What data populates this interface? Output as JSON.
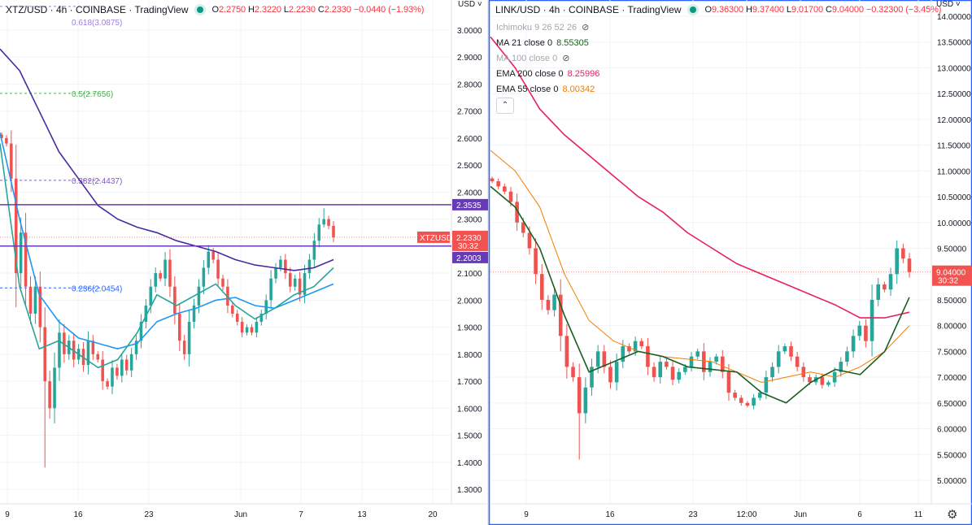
{
  "left": {
    "symbol": "XTZ/USD · 4h · COINBASE · TradingView",
    "ohlc": {
      "o_label": "O",
      "o": "2.2750",
      "h_label": "H",
      "h": "2.3220",
      "l_label": "L",
      "l": "2.2230",
      "c_label": "C",
      "c": "2.2330",
      "change": "−0.0440 (−1.93%)"
    },
    "currency": "USD ˅",
    "price_tag": {
      "symbol": "XTZUSD",
      "price": "2.2330",
      "countdown": "30:32",
      "color": "#f05350"
    },
    "level_tags": [
      "2.3535",
      "2.2003"
    ],
    "fib_labels": [
      "0.618(3.0875)",
      "0.5(2.7656)",
      "0.382(2.4437)",
      "0.236(2.0454)"
    ]
  },
  "right": {
    "symbol": "LINK/USD · 4h · COINBASE · TradingView",
    "ohlc": {
      "o_label": "O",
      "o": "9.36300",
      "h_label": "H",
      "h": "9.37400",
      "l_label": "L",
      "l": "9.01700",
      "c_label": "C",
      "c": "9.04000",
      "change": "−0.32300 (−3.45%)"
    },
    "currency": "USD ˅",
    "indicators": [
      {
        "label": "Ichimoku 9 26 52 26",
        "value": "",
        "hidden": true,
        "color": "#a3a6af"
      },
      {
        "label": "MA 21 close 0",
        "value": "8.55305",
        "hidden": false,
        "color": "#1b5e20"
      },
      {
        "label": "MA 100 close 0",
        "value": "",
        "hidden": true,
        "color": "#a3a6af"
      },
      {
        "label": "EMA 200 close 0",
        "value": "8.25996",
        "hidden": false,
        "color": "#e91e63"
      },
      {
        "label": "EMA 55 close 0",
        "value": "8.00342",
        "hidden": false,
        "color": "#f57c00"
      }
    ],
    "collapse_icon": "chevron-up-icon",
    "price_tag": {
      "price": "9.04000",
      "countdown": "30:32",
      "color": "#f05350"
    },
    "settings_icon": "gear-icon"
  },
  "colors": {
    "up": "#26a69a",
    "down": "#ef5350",
    "panel_border": "#2962ff",
    "level": "#673ab7"
  },
  "chart_data": [
    {
      "type": "candlestick",
      "title": "XTZ/USD · 4h · COINBASE",
      "ylim": [
        1.22,
        3.11
      ],
      "y_ticks": [
        "3.0000",
        "2.9000",
        "2.8000",
        "2.7000",
        "2.6000",
        "2.5000",
        "2.4000",
        "2.3000",
        "2.2000",
        "2.1000",
        "2.0000",
        "1.9000",
        "1.8000",
        "1.7000",
        "1.6000",
        "1.5000",
        "1.4000",
        "1.3000"
      ],
      "x_ticks": [
        "9",
        "16",
        "23",
        "Jun",
        "7",
        "13",
        "20"
      ],
      "closes": [
        2.6,
        2.58,
        2.45,
        2.1,
        2.25,
        2.05,
        1.95,
        2.05,
        1.9,
        1.7,
        1.6,
        1.75,
        1.88,
        1.8,
        1.85,
        1.78,
        1.82,
        1.76,
        1.85,
        1.8,
        1.78,
        1.7,
        1.68,
        1.75,
        1.72,
        1.78,
        1.74,
        1.8,
        1.85,
        1.92,
        1.98,
        2.05,
        2.1,
        2.08,
        2.15,
        2.05,
        1.95,
        1.85,
        1.8,
        1.92,
        1.98,
        2.05,
        2.12,
        2.18,
        2.15,
        2.08,
        2.05,
        1.98,
        1.95,
        1.92,
        1.88,
        1.9,
        1.88,
        1.92,
        1.95,
        2.0,
        2.08,
        2.12,
        2.15,
        2.1,
        2.05,
        2.08,
        2.02,
        2.1,
        2.15,
        2.22,
        2.28,
        2.3,
        2.275,
        2.233
      ],
      "extreme_low": {
        "index": 9,
        "value": 1.38
      },
      "extreme_high": {
        "index": 67,
        "value": 2.34
      },
      "lines": [
        {
          "color": "#4a2aa0",
          "values": [
            2.93,
            2.85,
            2.7,
            2.55,
            2.45,
            2.35,
            2.3,
            2.27,
            2.25,
            2.22,
            2.2,
            2.18,
            2.15,
            2.13,
            2.12,
            2.11,
            2.12,
            2.15
          ]
        },
        {
          "color": "#2196f3",
          "values": [
            2.62,
            2.3,
            2.02,
            1.92,
            1.86,
            1.84,
            1.82,
            1.84,
            1.92,
            1.95,
            1.97,
            2.0,
            2.01,
            1.98,
            1.97,
            2.0,
            2.03,
            2.06
          ]
        },
        {
          "color": "#26a69a",
          "values": [
            2.58,
            2.05,
            1.82,
            1.85,
            1.8,
            1.75,
            1.78,
            1.88,
            2.02,
            1.98,
            2.02,
            2.06,
            1.98,
            1.93,
            1.97,
            2.02,
            2.05,
            2.12
          ]
        }
      ],
      "levels": [
        2.3535,
        2.2003
      ],
      "fib_levels": [
        3.0875,
        2.7656,
        2.4437,
        2.0454
      ],
      "fib_colors": [
        "#9c7fe0",
        "#4caf50",
        "#7e57c2",
        "#2962ff"
      ],
      "last_price": 2.233
    },
    {
      "type": "candlestick",
      "title": "LINK/USD · 4h · COINBASE",
      "ylim": [
        4.5,
        14.3
      ],
      "y_ticks": [
        "14.00000",
        "13.50000",
        "13.00000",
        "12.50000",
        "12.00000",
        "11.50000",
        "11.00000",
        "10.50000",
        "10.00000",
        "9.50000",
        "9.00000",
        "8.50000",
        "8.00000",
        "7.50000",
        "7.00000",
        "6.50000",
        "6.00000",
        "5.50000",
        "5.00000"
      ],
      "x_ticks": [
        "9",
        "16",
        "23",
        "12:00",
        "Jun",
        "6",
        "11"
      ],
      "closes": [
        10.8,
        10.7,
        10.6,
        10.4,
        10.0,
        9.8,
        9.5,
        9.0,
        8.5,
        8.3,
        8.6,
        7.8,
        7.2,
        7.0,
        6.3,
        6.8,
        7.2,
        7.5,
        7.2,
        6.9,
        7.3,
        7.6,
        7.5,
        7.7,
        7.6,
        7.2,
        7.0,
        7.3,
        7.2,
        6.95,
        7.1,
        7.2,
        7.4,
        7.5,
        7.1,
        7.3,
        7.4,
        7.1,
        6.7,
        6.6,
        6.5,
        6.45,
        6.6,
        6.7,
        7.0,
        7.2,
        7.5,
        7.6,
        7.4,
        7.2,
        7.0,
        6.9,
        7.0,
        6.85,
        6.9,
        7.1,
        7.3,
        7.5,
        7.8,
        8.0,
        7.7,
        8.5,
        8.8,
        8.7,
        9.0,
        9.5,
        9.3,
        9.04
      ],
      "extreme_low": {
        "index": 14,
        "value": 5.4
      },
      "extreme_high": {
        "index": 65,
        "value": 9.65
      },
      "lines": [
        {
          "color": "#e91e63",
          "values": [
            13.6,
            13.0,
            12.2,
            11.7,
            11.3,
            10.9,
            10.5,
            10.2,
            9.8,
            9.5,
            9.2,
            9.0,
            8.8,
            8.6,
            8.4,
            8.15,
            8.15,
            8.26
          ]
        },
        {
          "color": "#f57c00",
          "values": [
            11.4,
            11.0,
            10.3,
            9.0,
            8.1,
            7.7,
            7.5,
            7.4,
            7.35,
            7.3,
            7.1,
            6.9,
            7.0,
            7.1,
            7.0,
            7.2,
            7.5,
            8.0
          ]
        },
        {
          "color": "#1b5e20",
          "values": [
            10.7,
            10.3,
            9.5,
            8.2,
            7.1,
            7.3,
            7.5,
            7.4,
            7.2,
            7.15,
            7.1,
            6.7,
            6.5,
            6.9,
            7.15,
            7.05,
            7.5,
            8.55
          ]
        }
      ],
      "last_price": 9.04
    }
  ]
}
